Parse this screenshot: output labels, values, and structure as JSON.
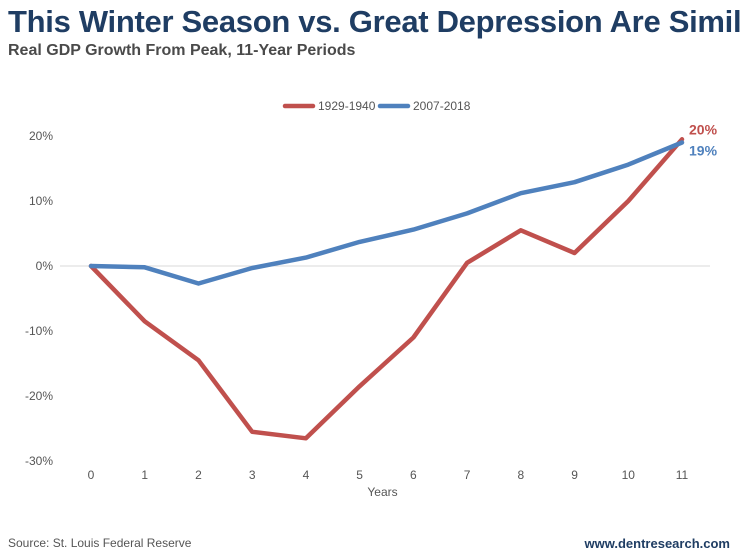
{
  "header": {
    "title": "This Winter Season vs. Great Depression Are Similar",
    "subtitle": "Real GDP Growth From Peak, 11-Year Periods"
  },
  "footer": {
    "source": "Source: St. Louis Federal Reserve",
    "site": "www.dentresearch.com"
  },
  "chart_data": {
    "type": "line",
    "xlabel": "Years",
    "ylabel": "",
    "x": [
      0,
      1,
      2,
      3,
      4,
      5,
      6,
      7,
      8,
      9,
      10,
      11
    ],
    "ylim": [
      -30,
      20
    ],
    "y_ticks": [
      20,
      10,
      0,
      -10,
      -20,
      -30
    ],
    "y_tick_labels": [
      "20%",
      "10%",
      "0%",
      "-10%",
      "-20%",
      "-30%"
    ],
    "grid": "zero line only",
    "legend_position": "top-center",
    "series": [
      {
        "name": "1929-1940",
        "color": "#c0504d",
        "values": [
          0,
          -8.5,
          -14.5,
          -25.5,
          -26.5,
          -18.5,
          -11,
          0.5,
          5.5,
          2,
          10,
          19.5
        ],
        "end_label": "20%"
      },
      {
        "name": "2007-2018",
        "color": "#4f81bd",
        "values": [
          0,
          -0.2,
          -2.7,
          -0.3,
          1.3,
          3.7,
          5.6,
          8.1,
          11.2,
          12.9,
          15.6,
          19
        ],
        "end_label": "19%"
      }
    ]
  }
}
